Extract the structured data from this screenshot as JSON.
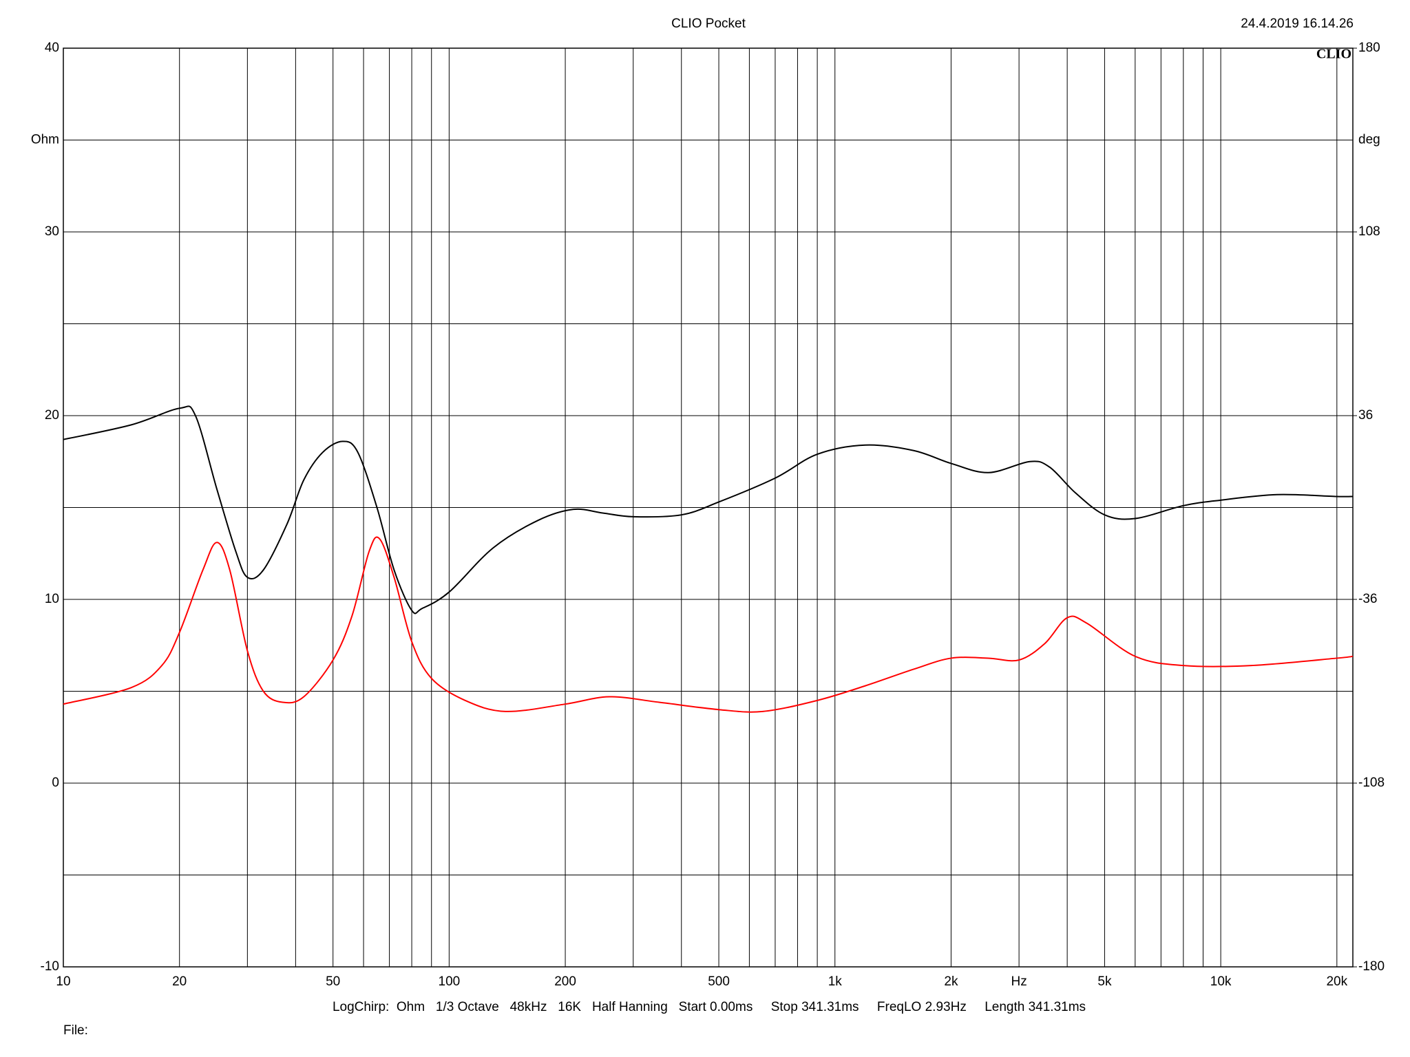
{
  "chart_data": {
    "type": "line",
    "title": "CLIO Pocket",
    "timestamp": "24.4.2019 16.14.26",
    "logo": "CLIO",
    "ylabel": "Ohm",
    "y2label": "deg",
    "xlabel": "Hz",
    "footer": "LogChirp:  Ohm   1/3 Octave   48kHz   16K   Half Hanning   Start 0.00ms     Stop 341.31ms     FreqLO 2.93Hz     Length 341.31ms",
    "file_label": "File:",
    "xscale": "log",
    "grid": true,
    "xlim": [
      10,
      22000
    ],
    "xticks": [
      10,
      20,
      50,
      100,
      200,
      500,
      {
        "value": 1000,
        "label": "1k"
      },
      {
        "value": 2000,
        "label": "2k"
      },
      {
        "value": 5000,
        "label": "5k"
      },
      {
        "value": 10000,
        "label": "10k"
      },
      {
        "value": 20000,
        "label": "20k"
      }
    ],
    "x_minor_ticks": [
      30,
      40,
      60,
      70,
      80,
      90,
      300,
      400,
      600,
      700,
      800,
      900,
      3000,
      4000,
      6000,
      7000,
      8000,
      9000
    ],
    "xlabel_at": 3000,
    "ylim": [
      -10,
      40
    ],
    "yticks": [
      -10,
      0,
      10,
      20,
      30,
      40
    ],
    "y_minor_ticks": [
      -5,
      5,
      15,
      25,
      35
    ],
    "ylabel_at": 35,
    "y2lim": [
      -180,
      180
    ],
    "y2ticks": [
      -180,
      -108,
      -36,
      36,
      108,
      180
    ],
    "series": [
      {
        "color": "#000000",
        "x": [
          10,
          15,
          20,
          22,
          25,
          28,
          30,
          33,
          38,
          42,
          47,
          53,
          58,
          65,
          72,
          80,
          85,
          100,
          130,
          170,
          210,
          250,
          300,
          400,
          500,
          700,
          900,
          1200,
          1600,
          2000,
          2500,
          3200,
          3600,
          4200,
          5000,
          6000,
          8000,
          10000,
          14000,
          20000,
          22000
        ],
        "values": [
          18.7,
          19.5,
          20.4,
          20.0,
          16.0,
          12.6,
          11.2,
          11.6,
          14.1,
          16.5,
          18.0,
          18.6,
          18.0,
          15.0,
          11.6,
          9.4,
          9.5,
          10.4,
          12.8,
          14.3,
          14.9,
          14.7,
          14.5,
          14.6,
          15.3,
          16.6,
          17.9,
          18.4,
          18.1,
          17.4,
          16.9,
          17.5,
          17.2,
          15.8,
          14.6,
          14.4,
          15.1,
          15.4,
          15.7,
          15.6,
          15.6
        ]
      },
      {
        "color": "#ff0000",
        "x": [
          10,
          15,
          18,
          20,
          23,
          25,
          27,
          30,
          33,
          37,
          42,
          50,
          56,
          62,
          66,
          72,
          80,
          90,
          110,
          140,
          200,
          260,
          350,
          500,
          650,
          900,
          1200,
          1600,
          2000,
          2500,
          3000,
          3500,
          4000,
          4500,
          6000,
          8000,
          12000,
          20000,
          22000
        ],
        "values": [
          4.3,
          5.2,
          6.4,
          8.2,
          11.6,
          13.1,
          11.6,
          7.2,
          5.0,
          4.4,
          4.7,
          6.7,
          9.1,
          12.6,
          13.3,
          11.2,
          7.7,
          5.7,
          4.5,
          3.9,
          4.3,
          4.7,
          4.4,
          4.0,
          3.9,
          4.5,
          5.3,
          6.2,
          6.8,
          6.8,
          6.7,
          7.6,
          9.0,
          8.7,
          6.9,
          6.4,
          6.4,
          6.8,
          6.9
        ]
      }
    ]
  }
}
